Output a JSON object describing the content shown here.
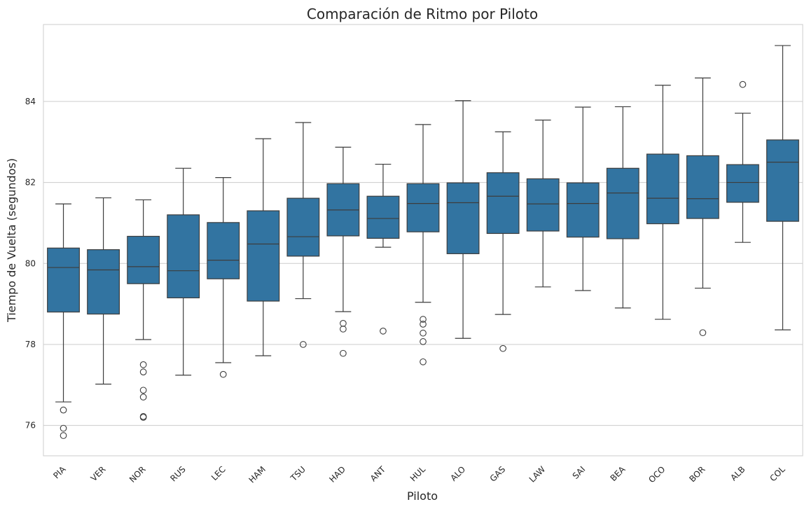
{
  "chart_data": {
    "type": "boxplot",
    "title": "Comparación de Ritmo por Piloto",
    "xlabel": "Piloto",
    "ylabel": "Tiempo de Vuelta (segundos)",
    "ylim": [
      75.25,
      85.9
    ],
    "yticks": [
      76,
      78,
      80,
      82,
      84
    ],
    "grid": "horizontal",
    "color": "#3274a1",
    "categories": [
      "PIA",
      "VER",
      "NOR",
      "RUS",
      "LEC",
      "HAM",
      "TSU",
      "HAD",
      "ANT",
      "HUL",
      "ALO",
      "GAS",
      "LAW",
      "SAI",
      "BEA",
      "OCO",
      "BOR",
      "ALB",
      "COL"
    ],
    "boxes": [
      {
        "label": "PIA",
        "min": 76.58,
        "q1": 78.8,
        "median": 79.9,
        "q3": 80.38,
        "max": 81.47,
        "outliers": [
          76.38,
          75.93,
          75.75
        ]
      },
      {
        "label": "VER",
        "min": 77.02,
        "q1": 78.75,
        "median": 79.84,
        "q3": 80.34,
        "max": 81.62,
        "outliers": []
      },
      {
        "label": "NOR",
        "min": 78.12,
        "q1": 79.5,
        "median": 79.92,
        "q3": 80.67,
        "max": 81.57,
        "outliers": [
          77.5,
          77.32,
          76.87,
          76.7,
          76.22,
          76.2
        ]
      },
      {
        "label": "RUS",
        "min": 77.24,
        "q1": 79.15,
        "median": 79.82,
        "q3": 81.2,
        "max": 82.35,
        "outliers": []
      },
      {
        "label": "LEC",
        "min": 77.55,
        "q1": 79.62,
        "median": 80.08,
        "q3": 81.01,
        "max": 82.12,
        "outliers": [
          77.26
        ]
      },
      {
        "label": "HAM",
        "min": 77.72,
        "q1": 79.07,
        "median": 80.48,
        "q3": 81.3,
        "max": 83.08,
        "outliers": []
      },
      {
        "label": "TSU",
        "min": 79.13,
        "q1": 80.18,
        "median": 80.66,
        "q3": 81.61,
        "max": 83.48,
        "outliers": [
          78.0
        ]
      },
      {
        "label": "HAD",
        "min": 78.81,
        "q1": 80.68,
        "median": 81.32,
        "q3": 81.97,
        "max": 82.87,
        "outliers": [
          78.52,
          78.38,
          77.78
        ]
      },
      {
        "label": "ANT",
        "min": 80.4,
        "q1": 80.62,
        "median": 81.11,
        "q3": 81.66,
        "max": 82.45,
        "outliers": [
          78.33
        ]
      },
      {
        "label": "HUL",
        "min": 79.04,
        "q1": 80.78,
        "median": 81.48,
        "q3": 81.97,
        "max": 83.43,
        "outliers": [
          78.62,
          78.5,
          78.28,
          78.07,
          77.57
        ]
      },
      {
        "label": "ALO",
        "min": 78.15,
        "q1": 80.24,
        "median": 81.5,
        "q3": 81.99,
        "max": 84.02,
        "outliers": []
      },
      {
        "label": "GAS",
        "min": 78.74,
        "q1": 80.74,
        "median": 81.66,
        "q3": 82.24,
        "max": 83.25,
        "outliers": [
          77.9
        ]
      },
      {
        "label": "LAW",
        "min": 79.42,
        "q1": 80.8,
        "median": 81.47,
        "q3": 82.09,
        "max": 83.54,
        "outliers": []
      },
      {
        "label": "SAI",
        "min": 79.33,
        "q1": 80.65,
        "median": 81.48,
        "q3": 81.99,
        "max": 83.86,
        "outliers": []
      },
      {
        "label": "BEA",
        "min": 78.9,
        "q1": 80.61,
        "median": 81.74,
        "q3": 82.35,
        "max": 83.87,
        "outliers": []
      },
      {
        "label": "OCO",
        "min": 78.62,
        "q1": 80.98,
        "median": 81.61,
        "q3": 82.7,
        "max": 84.4,
        "outliers": []
      },
      {
        "label": "BOR",
        "min": 79.39,
        "q1": 81.11,
        "median": 81.6,
        "q3": 82.66,
        "max": 84.58,
        "outliers": [
          78.29
        ]
      },
      {
        "label": "ALB",
        "min": 80.52,
        "q1": 81.51,
        "median": 82.0,
        "q3": 82.44,
        "max": 83.71,
        "outliers": [
          84.42
        ]
      },
      {
        "label": "COL",
        "min": 78.36,
        "q1": 81.04,
        "median": 82.5,
        "q3": 83.05,
        "max": 85.38,
        "outliers": []
      }
    ]
  }
}
